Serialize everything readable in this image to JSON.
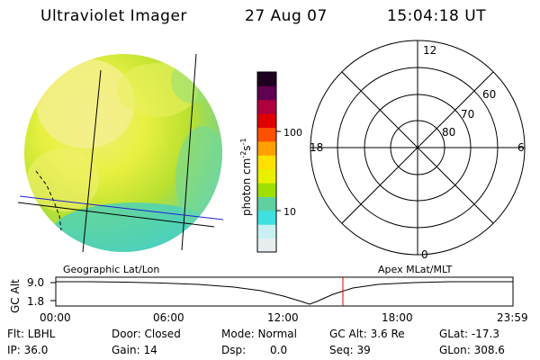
{
  "header": {
    "title": "Ultraviolet Imager",
    "date": "27 Aug 07",
    "time": "15:04:18 UT"
  },
  "colorbar": {
    "label": "photon cm",
    "label_exp1": "-2",
    "label_s": "s",
    "label_exp2": "-1",
    "ticks": [
      "100",
      "10"
    ],
    "colors": [
      "#e8eef0",
      "#c8f0f0",
      "#40e0e0",
      "#60d0a0",
      "#a0e000",
      "#e8f000",
      "#ffe000",
      "#ffa000",
      "#ff5000",
      "#e00000",
      "#b00040",
      "#600050",
      "#200020"
    ]
  },
  "polar_grid": {
    "mlt_labels": [
      "12",
      "18",
      "6",
      "0"
    ],
    "lat_labels": [
      "60",
      "70",
      "80"
    ]
  },
  "map_labels": {
    "left": "Geographic Lat/Lon",
    "right": "Apex MLat/MLT"
  },
  "alt_plot": {
    "ylabel": "GC Alt",
    "yticks": [
      "9.0",
      "1.8"
    ],
    "xticks": [
      "00:00",
      "06:00",
      "12:00",
      "18:00",
      "23:59"
    ],
    "marker_time_hours": 15.07,
    "marker_color": "#e00000"
  },
  "info": {
    "row1": {
      "flt": "Flt: LBHL",
      "door": "Door: Closed",
      "mode": "Mode: Normal",
      "gcalt": "GC Alt: 3.6 Re",
      "glat": "GLat: -17.3"
    },
    "row2": {
      "ip": "IP: 36.0",
      "gain": "Gain: 14",
      "dsp_label": "Dsp:",
      "dsp_value": "0.0",
      "seq": "Seq: 39",
      "glon": "GLon: 308.6"
    }
  }
}
